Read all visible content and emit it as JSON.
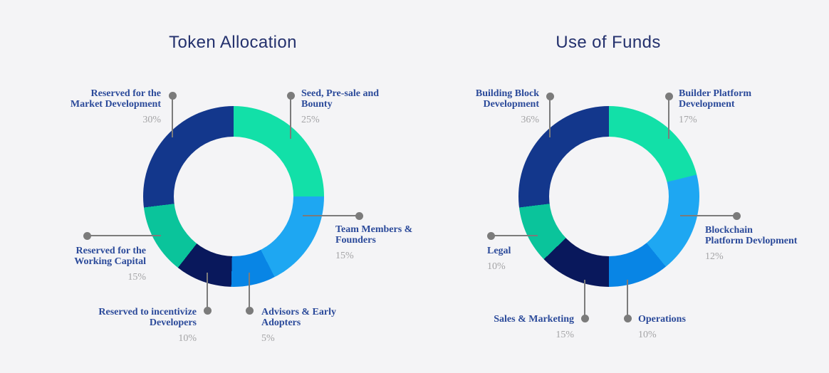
{
  "background_color": "#f4f4f6",
  "colors": {
    "title_text": "#24316d",
    "label_text": "#2b4a9a",
    "percent_text": "#a4a4a6",
    "leader": "#7b7b7b"
  },
  "chart_data": [
    {
      "type": "donut",
      "title": "Token Allocation",
      "direction": "clockwise",
      "start_angle_deg": 0,
      "legend_position": "callout-labels",
      "slices": [
        {
          "label": "Seed, Pre-sale and Bounty",
          "label_lines": [
            "Seed, Pre-sale and",
            "Bounty"
          ],
          "value": 25,
          "pct_label": "25%",
          "color": "#12e0a8"
        },
        {
          "label": "Team Members & Founders",
          "label_lines": [
            "Team Members &",
            "Founders"
          ],
          "value": 15,
          "pct_label": "15%",
          "color": "#1ea7f2"
        },
        {
          "label": "Advisors & Early Adopters",
          "label_lines": [
            "Advisors & Early",
            "Adopters"
          ],
          "value": 5,
          "pct_label": "5%",
          "color": "#0885e5"
        },
        {
          "label": "Reserved to incentivize Developers",
          "label_lines": [
            "Reserved to incentivize",
            "Developers"
          ],
          "value": 10,
          "pct_label": "10%",
          "color": "#09185c"
        },
        {
          "label": "Reserved for the Working Capital",
          "label_lines": [
            "Reserved for the",
            "Working Capital"
          ],
          "value": 15,
          "pct_label": "15%",
          "color": "#0ac49b"
        },
        {
          "label": "Reserved for the Market Development",
          "label_lines": [
            "Reserved for the",
            "Market Development"
          ],
          "value": 30,
          "pct_label": "30%",
          "color": "#13378c"
        }
      ]
    },
    {
      "type": "donut",
      "title": "Use of Funds",
      "direction": "clockwise",
      "start_angle_deg": 0,
      "legend_position": "callout-labels",
      "slices": [
        {
          "label": "Builder Platform Development",
          "label_lines": [
            "Builder Platform",
            "Development"
          ],
          "value": 17,
          "pct_label": "17%",
          "color": "#12e0a8"
        },
        {
          "label": "Blockchain Platform Devlopment",
          "label_lines": [
            "Blockchain",
            "Platform Devlopment"
          ],
          "value": 12,
          "pct_label": "12%",
          "color": "#1ea7f2"
        },
        {
          "label": "Operations",
          "label_lines": [
            "Operations"
          ],
          "value": 10,
          "pct_label": "10%",
          "color": "#0885e5"
        },
        {
          "label": "Sales & Marketing",
          "label_lines": [
            "Sales & Marketing"
          ],
          "value": 15,
          "pct_label": "15%",
          "color": "#09185c"
        },
        {
          "label": "Legal",
          "label_lines": [
            "Legal"
          ],
          "value": 10,
          "pct_label": "10%",
          "color": "#0ac49b"
        },
        {
          "label": "Building Block Development",
          "label_lines": [
            "Building Block",
            "Development"
          ],
          "value": 36,
          "pct_label": "36%",
          "color": "#13378c"
        }
      ]
    }
  ]
}
